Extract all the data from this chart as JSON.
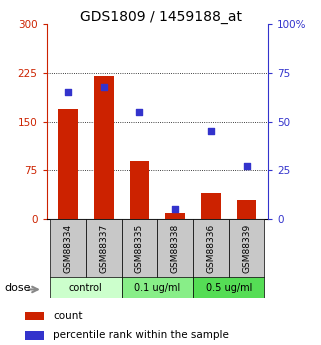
{
  "title": "GDS1809 / 1459188_at",
  "categories": [
    "GSM88334",
    "GSM88337",
    "GSM88335",
    "GSM88338",
    "GSM88336",
    "GSM88339"
  ],
  "bar_values": [
    170,
    220,
    90,
    10,
    40,
    30
  ],
  "percentile_values": [
    65,
    68,
    55,
    5,
    45,
    27
  ],
  "bar_color": "#cc2200",
  "point_color": "#3333cc",
  "left_ylim": [
    0,
    300
  ],
  "right_ylim": [
    0,
    100
  ],
  "left_yticks": [
    0,
    75,
    150,
    225,
    300
  ],
  "right_yticks": [
    0,
    25,
    50,
    75,
    100
  ],
  "right_yticklabels": [
    "0",
    "25",
    "50",
    "75",
    "100%"
  ],
  "left_tick_color": "#cc2200",
  "right_tick_color": "#3333cc",
  "groups": [
    {
      "label": "control",
      "indices": [
        0,
        1
      ],
      "color": "#ccffcc"
    },
    {
      "label": "0.1 ug/ml",
      "indices": [
        2,
        3
      ],
      "color": "#88ee88"
    },
    {
      "label": "0.5 ug/ml",
      "indices": [
        4,
        5
      ],
      "color": "#55dd55"
    }
  ],
  "label_box_color": "#c8c8c8",
  "dose_label": "dose",
  "legend_count_label": "count",
  "legend_pct_label": "percentile rank within the sample",
  "bar_width": 0.55,
  "title_fontsize": 10,
  "tick_labelsize": 7.5,
  "cat_fontsize": 6.5,
  "dose_fontsize": 7,
  "legend_fontsize": 7.5,
  "grid_yticks": [
    75,
    150,
    225
  ]
}
